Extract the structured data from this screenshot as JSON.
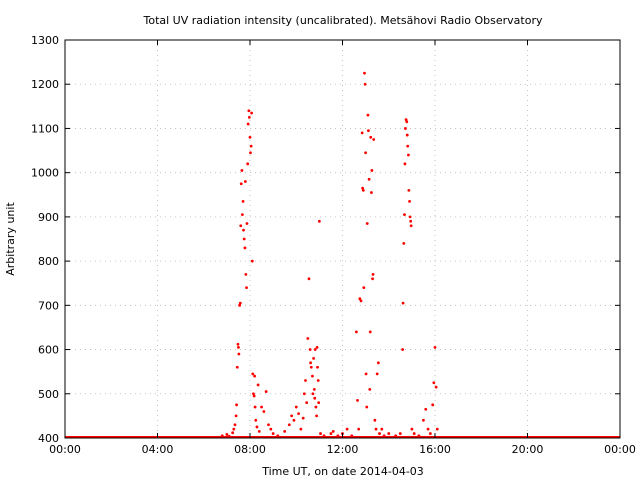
{
  "chart_data": {
    "type": "scatter",
    "title": "Total UV radiation intensity (uncalibrated). Metsähovi Radio Observatory",
    "xlabel": "Time UT, on date 2014-04-03",
    "ylabel": "Arbitrary unit",
    "xlim_hours": [
      0,
      24
    ],
    "ylim": [
      400,
      1300
    ],
    "x_tick_labels": [
      "00:00",
      "04:00",
      "08:00",
      "12:00",
      "16:00",
      "20:00",
      "00:00"
    ],
    "y_tick_labels": [
      "400",
      "500",
      "600",
      "700",
      "800",
      "900",
      "1000",
      "1100",
      "1200",
      "1300"
    ],
    "grid": true,
    "point_color": "#ff0000",
    "baseline": {
      "y": 402,
      "x_range_hours": [
        0,
        24
      ]
    },
    "points": [
      {
        "x": 6.8,
        "y": 405
      },
      {
        "x": 7.0,
        "y": 408
      },
      {
        "x": 7.1,
        "y": 404
      },
      {
        "x": 7.25,
        "y": 412
      },
      {
        "x": 7.3,
        "y": 420
      },
      {
        "x": 7.35,
        "y": 430
      },
      {
        "x": 7.4,
        "y": 450
      },
      {
        "x": 7.42,
        "y": 475
      },
      {
        "x": 7.45,
        "y": 560
      },
      {
        "x": 7.48,
        "y": 612
      },
      {
        "x": 7.5,
        "y": 605
      },
      {
        "x": 7.52,
        "y": 590
      },
      {
        "x": 7.55,
        "y": 700
      },
      {
        "x": 7.58,
        "y": 705
      },
      {
        "x": 7.6,
        "y": 880
      },
      {
        "x": 7.62,
        "y": 975
      },
      {
        "x": 7.65,
        "y": 1005
      },
      {
        "x": 7.67,
        "y": 905
      },
      {
        "x": 7.7,
        "y": 935
      },
      {
        "x": 7.72,
        "y": 870
      },
      {
        "x": 7.75,
        "y": 850
      },
      {
        "x": 7.78,
        "y": 830
      },
      {
        "x": 7.8,
        "y": 980
      },
      {
        "x": 7.82,
        "y": 770
      },
      {
        "x": 7.85,
        "y": 740
      },
      {
        "x": 7.87,
        "y": 885
      },
      {
        "x": 7.9,
        "y": 1020
      },
      {
        "x": 7.92,
        "y": 1110
      },
      {
        "x": 7.95,
        "y": 1140
      },
      {
        "x": 7.97,
        "y": 1125
      },
      {
        "x": 8.0,
        "y": 1080
      },
      {
        "x": 8.02,
        "y": 1045
      },
      {
        "x": 8.05,
        "y": 1060
      },
      {
        "x": 8.07,
        "y": 1135
      },
      {
        "x": 8.1,
        "y": 800
      },
      {
        "x": 8.12,
        "y": 545
      },
      {
        "x": 8.15,
        "y": 500
      },
      {
        "x": 8.18,
        "y": 495
      },
      {
        "x": 8.2,
        "y": 540
      },
      {
        "x": 8.22,
        "y": 470
      },
      {
        "x": 8.25,
        "y": 440
      },
      {
        "x": 8.3,
        "y": 425
      },
      {
        "x": 8.35,
        "y": 520
      },
      {
        "x": 8.4,
        "y": 415
      },
      {
        "x": 8.5,
        "y": 470
      },
      {
        "x": 8.6,
        "y": 460
      },
      {
        "x": 8.7,
        "y": 505
      },
      {
        "x": 8.8,
        "y": 430
      },
      {
        "x": 8.9,
        "y": 420
      },
      {
        "x": 9.0,
        "y": 410
      },
      {
        "x": 9.2,
        "y": 405
      },
      {
        "x": 9.5,
        "y": 415
      },
      {
        "x": 9.7,
        "y": 430
      },
      {
        "x": 9.8,
        "y": 450
      },
      {
        "x": 9.9,
        "y": 440
      },
      {
        "x": 10.0,
        "y": 470
      },
      {
        "x": 10.1,
        "y": 455
      },
      {
        "x": 10.2,
        "y": 420
      },
      {
        "x": 10.3,
        "y": 445
      },
      {
        "x": 10.35,
        "y": 500
      },
      {
        "x": 10.4,
        "y": 530
      },
      {
        "x": 10.45,
        "y": 480
      },
      {
        "x": 10.5,
        "y": 625
      },
      {
        "x": 10.55,
        "y": 760
      },
      {
        "x": 10.6,
        "y": 600
      },
      {
        "x": 10.62,
        "y": 570
      },
      {
        "x": 10.65,
        "y": 560
      },
      {
        "x": 10.7,
        "y": 540
      },
      {
        "x": 10.72,
        "y": 500
      },
      {
        "x": 10.75,
        "y": 580
      },
      {
        "x": 10.78,
        "y": 510
      },
      {
        "x": 10.8,
        "y": 490
      },
      {
        "x": 10.82,
        "y": 600
      },
      {
        "x": 10.85,
        "y": 470
      },
      {
        "x": 10.88,
        "y": 450
      },
      {
        "x": 10.9,
        "y": 605
      },
      {
        "x": 10.92,
        "y": 560
      },
      {
        "x": 10.95,
        "y": 530
      },
      {
        "x": 10.97,
        "y": 480
      },
      {
        "x": 11.0,
        "y": 890
      },
      {
        "x": 11.05,
        "y": 410
      },
      {
        "x": 11.2,
        "y": 405
      },
      {
        "x": 11.5,
        "y": 410
      },
      {
        "x": 11.6,
        "y": 415
      },
      {
        "x": 11.8,
        "y": 405
      },
      {
        "x": 12.0,
        "y": 410
      },
      {
        "x": 12.2,
        "y": 420
      },
      {
        "x": 12.4,
        "y": 405
      },
      {
        "x": 12.6,
        "y": 640
      },
      {
        "x": 12.65,
        "y": 485
      },
      {
        "x": 12.7,
        "y": 420
      },
      {
        "x": 12.75,
        "y": 715
      },
      {
        "x": 12.8,
        "y": 710
      },
      {
        "x": 12.85,
        "y": 1090
      },
      {
        "x": 12.87,
        "y": 965
      },
      {
        "x": 12.9,
        "y": 960
      },
      {
        "x": 12.92,
        "y": 740
      },
      {
        "x": 12.95,
        "y": 1225
      },
      {
        "x": 12.98,
        "y": 1200
      },
      {
        "x": 13.0,
        "y": 1045
      },
      {
        "x": 13.02,
        "y": 545
      },
      {
        "x": 13.05,
        "y": 470
      },
      {
        "x": 13.07,
        "y": 885
      },
      {
        "x": 13.1,
        "y": 1130
      },
      {
        "x": 13.12,
        "y": 1095
      },
      {
        "x": 13.15,
        "y": 985
      },
      {
        "x": 13.18,
        "y": 510
      },
      {
        "x": 13.2,
        "y": 640
      },
      {
        "x": 13.22,
        "y": 1080
      },
      {
        "x": 13.25,
        "y": 955
      },
      {
        "x": 13.27,
        "y": 1005
      },
      {
        "x": 13.3,
        "y": 760
      },
      {
        "x": 13.32,
        "y": 770
      },
      {
        "x": 13.35,
        "y": 1075
      },
      {
        "x": 13.4,
        "y": 440
      },
      {
        "x": 13.45,
        "y": 420
      },
      {
        "x": 13.5,
        "y": 545
      },
      {
        "x": 13.55,
        "y": 570
      },
      {
        "x": 13.6,
        "y": 410
      },
      {
        "x": 13.7,
        "y": 420
      },
      {
        "x": 13.8,
        "y": 405
      },
      {
        "x": 14.0,
        "y": 410
      },
      {
        "x": 14.3,
        "y": 405
      },
      {
        "x": 14.5,
        "y": 410
      },
      {
        "x": 14.6,
        "y": 600
      },
      {
        "x": 14.62,
        "y": 705
      },
      {
        "x": 14.65,
        "y": 840
      },
      {
        "x": 14.68,
        "y": 905
      },
      {
        "x": 14.7,
        "y": 1020
      },
      {
        "x": 14.72,
        "y": 1100
      },
      {
        "x": 14.75,
        "y": 1120
      },
      {
        "x": 14.78,
        "y": 1115
      },
      {
        "x": 14.8,
        "y": 1085
      },
      {
        "x": 14.82,
        "y": 1060
      },
      {
        "x": 14.85,
        "y": 1040
      },
      {
        "x": 14.87,
        "y": 960
      },
      {
        "x": 14.9,
        "y": 935
      },
      {
        "x": 14.92,
        "y": 900
      },
      {
        "x": 14.95,
        "y": 890
      },
      {
        "x": 14.97,
        "y": 880
      },
      {
        "x": 15.0,
        "y": 420
      },
      {
        "x": 15.1,
        "y": 410
      },
      {
        "x": 15.3,
        "y": 405
      },
      {
        "x": 15.5,
        "y": 440
      },
      {
        "x": 15.6,
        "y": 465
      },
      {
        "x": 15.7,
        "y": 420
      },
      {
        "x": 15.8,
        "y": 410
      },
      {
        "x": 15.9,
        "y": 475
      },
      {
        "x": 15.95,
        "y": 525
      },
      {
        "x": 16.0,
        "y": 605
      },
      {
        "x": 16.05,
        "y": 515
      },
      {
        "x": 16.1,
        "y": 420
      }
    ]
  }
}
